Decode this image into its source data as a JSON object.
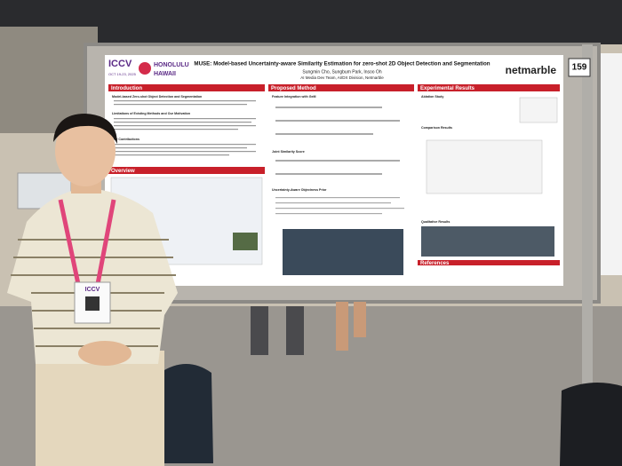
{
  "badge": {
    "conference": "ICCV"
  },
  "board_number": "159",
  "poster": {
    "conference_logo": {
      "name": "ICCV",
      "dates": "OCT 19-23, 2025",
      "city": "HONOLULU",
      "state": "HAWAII"
    },
    "title_lines": [
      "MUSE: Model-based Uncertainty-aware Similarity Estimation for zero-shot 2D Object Detection and Segmentation"
    ],
    "authors": "Sungmin Cho, Sungbum Park, Insoo Oh",
    "affiliation": "AI Media Dev Team, AI/DX Division, Netmarble",
    "company_logo": "netmarble",
    "sections": {
      "introduction": {
        "header": "Introduction",
        "items": [
          "Model-based Zero-shot Object Detection and Segmentation",
          "Limitations of Existing Methods and Our Motivation",
          "Our Contributions"
        ]
      },
      "overview": {
        "header": "Overview"
      },
      "method": {
        "header": "Proposed Method",
        "items": [
          "Feature Integration with GeM",
          "Joint Similarity Score",
          "Uncertainty-Aware Objectness Prior"
        ]
      },
      "results": {
        "header": "Experimental Results",
        "items": [
          "Ablation Study",
          "Comparison Results",
          "Qualitative Results"
        ]
      },
      "references": {
        "header": "References"
      }
    }
  }
}
